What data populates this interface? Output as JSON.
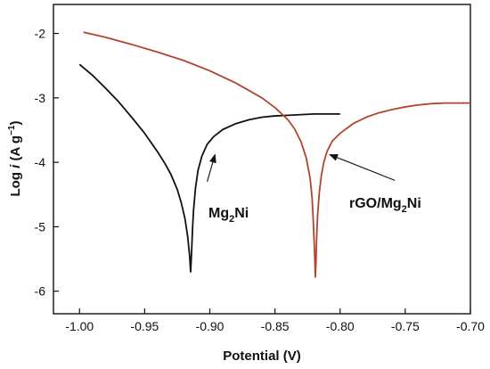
{
  "chart_data": {
    "type": "line",
    "title": "",
    "xlabel": "Potential (V)",
    "ylabel_parts": [
      "Log ",
      "i",
      " (A g",
      "−1",
      ")"
    ],
    "xlim": [
      -1.02,
      -0.7
    ],
    "ylim": [
      -6.35,
      -1.55
    ],
    "xticks": [
      -1.0,
      -0.95,
      -0.9,
      -0.85,
      -0.8,
      -0.75,
      -0.7
    ],
    "xtick_labels": [
      "-1.00",
      "-0.95",
      "-0.90",
      "-0.85",
      "-0.80",
      "-0.75",
      "-0.70"
    ],
    "yticks": [
      -6,
      -5,
      -4,
      -3,
      -2
    ],
    "ytick_labels": [
      "-6",
      "-5",
      "-4",
      "-3",
      "-2"
    ],
    "grid": false,
    "legend": "none",
    "series": [
      {
        "label_parts": [
          "Mg",
          "2",
          "Ni"
        ],
        "color": "#111111",
        "x": [
          -1.0,
          -0.99,
          -0.98,
          -0.97,
          -0.96,
          -0.95,
          -0.94,
          -0.935,
          -0.93,
          -0.925,
          -0.922,
          -0.919,
          -0.917,
          -0.9155,
          -0.9147,
          -0.914,
          -0.9133,
          -0.9125,
          -0.911,
          -0.909,
          -0.906,
          -0.902,
          -0.897,
          -0.89,
          -0.88,
          -0.87,
          -0.86,
          -0.85,
          -0.84,
          -0.83,
          -0.82,
          -0.81,
          -0.8
        ],
        "y": [
          -2.48,
          -2.65,
          -2.85,
          -3.06,
          -3.3,
          -3.55,
          -3.84,
          -4.0,
          -4.18,
          -4.42,
          -4.62,
          -4.88,
          -5.15,
          -5.45,
          -5.7,
          -5.4,
          -5.05,
          -4.75,
          -4.4,
          -4.12,
          -3.9,
          -3.72,
          -3.6,
          -3.49,
          -3.4,
          -3.34,
          -3.3,
          -3.28,
          -3.27,
          -3.26,
          -3.25,
          -3.25,
          -3.25
        ]
      },
      {
        "label_parts": [
          "rGO/Mg",
          "2",
          "Ni"
        ],
        "color": "#b0452e",
        "x": [
          -0.997,
          -0.98,
          -0.96,
          -0.94,
          -0.92,
          -0.9,
          -0.88,
          -0.86,
          -0.85,
          -0.84,
          -0.835,
          -0.83,
          -0.826,
          -0.823,
          -0.8215,
          -0.8205,
          -0.8195,
          -0.819,
          -0.8185,
          -0.818,
          -0.8172,
          -0.816,
          -0.8145,
          -0.8125,
          -0.81,
          -0.806,
          -0.8,
          -0.79,
          -0.78,
          -0.77,
          -0.76,
          -0.75,
          -0.74,
          -0.73,
          -0.72,
          -0.71,
          -0.7
        ],
        "y": [
          -1.98,
          -2.06,
          -2.17,
          -2.29,
          -2.42,
          -2.58,
          -2.77,
          -3.0,
          -3.15,
          -3.34,
          -3.48,
          -3.68,
          -3.93,
          -4.25,
          -4.55,
          -4.95,
          -5.45,
          -5.78,
          -5.55,
          -5.15,
          -4.8,
          -4.48,
          -4.22,
          -4.0,
          -3.83,
          -3.67,
          -3.55,
          -3.4,
          -3.3,
          -3.23,
          -3.18,
          -3.14,
          -3.11,
          -3.09,
          -3.08,
          -3.08,
          -3.08
        ]
      }
    ],
    "annotations": [
      {
        "text_parts": [
          "Mg",
          "2",
          "Ni"
        ],
        "arrow_from": [
          -0.902,
          -4.3
        ],
        "arrow_to": [
          -0.896,
          -3.88
        ]
      },
      {
        "text_parts": [
          "rGO/Mg",
          "2",
          "Ni"
        ],
        "arrow_from": [
          -0.758,
          -4.28
        ],
        "arrow_to": [
          -0.808,
          -3.88
        ]
      }
    ]
  }
}
